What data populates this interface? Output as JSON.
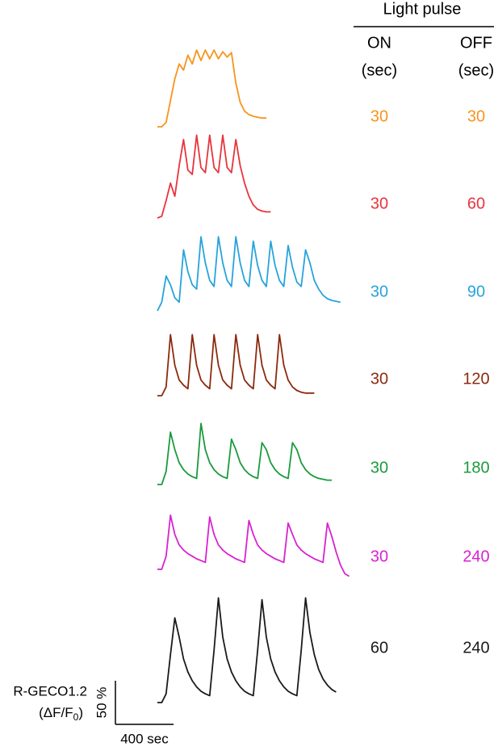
{
  "chart_data": {
    "type": "line",
    "header": {
      "title": "Light pulse",
      "on": "ON",
      "on_unit": "(sec)",
      "off": "OFF",
      "off_unit": "(sec)"
    },
    "y_label": {
      "name": "R-GECO1.2",
      "prefix": "(ΔF/F",
      "subscript": "0",
      "suffix": ")"
    },
    "scale_bar": {
      "x": 400,
      "x_label": "400 sec",
      "y": 50,
      "y_label": "50 %"
    },
    "x": [
      0,
      30,
      60,
      90,
      120,
      150,
      180,
      210,
      240,
      270,
      300,
      330,
      360,
      390,
      420,
      450,
      480,
      510,
      540,
      570,
      600,
      630,
      660,
      690,
      720,
      750,
      780,
      810,
      840,
      870,
      900,
      930,
      960,
      990,
      1020,
      1050,
      1080,
      1110,
      1140,
      1170,
      1200,
      1230,
      1260,
      1290,
      1320
    ],
    "series": [
      {
        "color": "#f7941d",
        "on": 30,
        "off": 30,
        "values": [
          0,
          0,
          5,
          30,
          55,
          72,
          65,
          82,
          72,
          88,
          76,
          88,
          78,
          88,
          78,
          86,
          80,
          85,
          50,
          28,
          18,
          14,
          12,
          11,
          10,
          10,
          null,
          null,
          null,
          null,
          null,
          null,
          null,
          null,
          null,
          null,
          null,
          null,
          null,
          null,
          null,
          null,
          null,
          null,
          null
        ]
      },
      {
        "color": "#e8343c",
        "on": 30,
        "off": 60,
        "values": [
          0,
          2,
          20,
          40,
          25,
          60,
          90,
          55,
          50,
          95,
          58,
          52,
          95,
          58,
          52,
          95,
          58,
          52,
          90,
          60,
          40,
          25,
          15,
          10,
          8,
          7,
          7,
          null,
          null,
          null,
          null,
          null,
          null,
          null,
          null,
          null,
          null,
          null,
          null,
          null,
          null,
          null,
          null,
          null,
          null
        ]
      },
      {
        "color": "#27a3dc",
        "on": 30,
        "off": 90,
        "values": [
          0,
          10,
          40,
          30,
          15,
          10,
          70,
          45,
          30,
          25,
          85,
          55,
          35,
          28,
          85,
          55,
          35,
          28,
          85,
          55,
          35,
          28,
          80,
          52,
          35,
          28,
          80,
          52,
          35,
          28,
          75,
          50,
          33,
          28,
          70,
          55,
          35,
          25,
          18,
          14,
          12,
          11,
          10,
          null,
          null
        ]
      },
      {
        "color": "#8b2a0e",
        "on": 30,
        "off": 120,
        "values": [
          0,
          0,
          10,
          70,
          35,
          18,
          12,
          8,
          70,
          35,
          18,
          12,
          8,
          70,
          35,
          18,
          12,
          8,
          70,
          35,
          18,
          12,
          8,
          70,
          35,
          18,
          12,
          8,
          70,
          35,
          18,
          10,
          6,
          4,
          3,
          3,
          3,
          null,
          null,
          null,
          null,
          null,
          null,
          null,
          null
        ]
      },
      {
        "color": "#1a9a3c",
        "on": 30,
        "off": 180,
        "values": [
          0,
          0,
          15,
          60,
          40,
          25,
          17,
          12,
          9,
          7,
          70,
          40,
          25,
          17,
          12,
          9,
          7,
          52,
          40,
          25,
          17,
          12,
          9,
          7,
          48,
          40,
          25,
          17,
          12,
          9,
          7,
          48,
          40,
          25,
          17,
          12,
          9,
          7,
          6,
          5,
          5,
          null,
          null,
          null,
          null
        ]
      },
      {
        "color": "#d822d0",
        "on": 30,
        "off": 240,
        "values": [
          0,
          0,
          15,
          62,
          40,
          28,
          22,
          18,
          15,
          12,
          10,
          8,
          60,
          40,
          28,
          22,
          18,
          15,
          12,
          10,
          8,
          56,
          40,
          28,
          22,
          18,
          15,
          12,
          10,
          8,
          53,
          40,
          28,
          22,
          18,
          15,
          12,
          10,
          8,
          53,
          38,
          20,
          5,
          -5,
          -8
        ]
      },
      {
        "color": "#1a1a1a",
        "on": 60,
        "off": 240,
        "values": [
          0,
          0,
          10,
          55,
          97,
          75,
          50,
          35,
          25,
          18,
          13,
          10,
          8,
          60,
          120,
          75,
          50,
          35,
          25,
          18,
          13,
          10,
          8,
          60,
          118,
          75,
          50,
          35,
          25,
          18,
          13,
          10,
          8,
          60,
          120,
          80,
          55,
          38,
          27,
          20,
          15,
          12,
          null,
          null,
          null
        ]
      }
    ]
  }
}
